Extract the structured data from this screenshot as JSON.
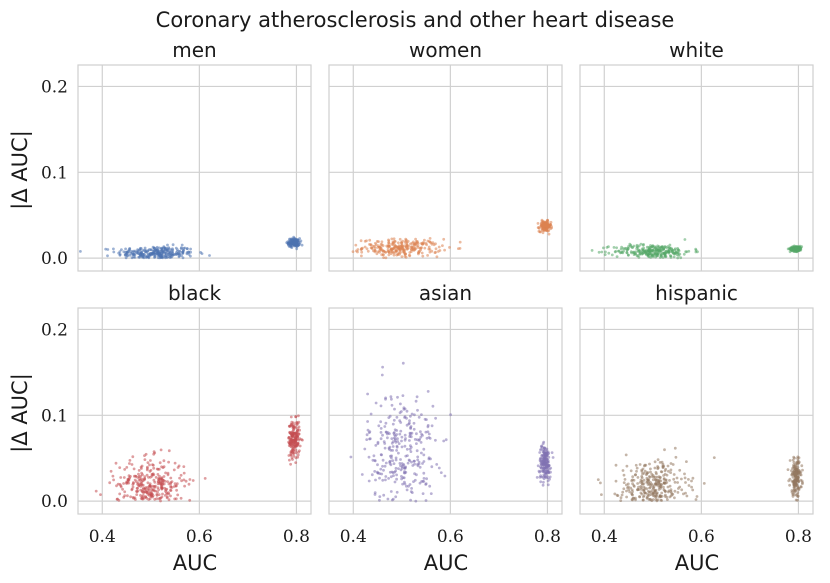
{
  "chart_data": {
    "type": "scatter",
    "title": "Coronary atherosclerosis and other heart disease",
    "xlabel": "AUC",
    "ylabel": "|Δ AUC|",
    "xlim": [
      0.35,
      0.83
    ],
    "ylim": [
      -0.015,
      0.225
    ],
    "xticks": [
      0.4,
      0.6,
      0.8
    ],
    "xtick_labels": [
      "0.4",
      "0.6",
      "0.8"
    ],
    "yticks": [
      0.0,
      0.1,
      0.2
    ],
    "ytick_labels": [
      "0.0",
      "0.1",
      "0.2"
    ],
    "grid": true,
    "panels": [
      {
        "name": "men",
        "color": "#4c72b0",
        "clusters": [
          {
            "x_center": 0.51,
            "x_spread": 0.04,
            "y_center": 0.006,
            "y_spread": 0.004,
            "n": 260
          },
          {
            "x_center": 0.795,
            "x_spread": 0.006,
            "y_center": 0.018,
            "y_spread": 0.0025,
            "n": 150
          }
        ]
      },
      {
        "name": "women",
        "color": "#dd8452",
        "clusters": [
          {
            "x_center": 0.5,
            "x_spread": 0.04,
            "y_center": 0.012,
            "y_spread": 0.005,
            "n": 260
          },
          {
            "x_center": 0.795,
            "x_spread": 0.006,
            "y_center": 0.037,
            "y_spread": 0.003,
            "n": 150
          }
        ]
      },
      {
        "name": "white",
        "color": "#55a868",
        "clusters": [
          {
            "x_center": 0.5,
            "x_spread": 0.04,
            "y_center": 0.008,
            "y_spread": 0.004,
            "n": 260
          },
          {
            "x_center": 0.795,
            "x_spread": 0.006,
            "y_center": 0.011,
            "y_spread": 0.0015,
            "n": 150
          }
        ]
      },
      {
        "name": "black",
        "color": "#c44e52",
        "clusters": [
          {
            "x_center": 0.5,
            "x_spread": 0.035,
            "y_center": 0.02,
            "y_spread": 0.015,
            "n": 300
          },
          {
            "x_center": 0.795,
            "x_spread": 0.006,
            "y_center": 0.072,
            "y_spread": 0.011,
            "n": 180
          }
        ]
      },
      {
        "name": "asian",
        "color": "#8172b3",
        "clusters": [
          {
            "x_center": 0.5,
            "x_spread": 0.035,
            "y_center": 0.06,
            "y_spread": 0.035,
            "n": 300
          },
          {
            "x_center": 0.795,
            "x_spread": 0.006,
            "y_center": 0.045,
            "y_spread": 0.01,
            "n": 180
          }
        ]
      },
      {
        "name": "hispanic",
        "color": "#937860",
        "clusters": [
          {
            "x_center": 0.5,
            "x_spread": 0.035,
            "y_center": 0.018,
            "y_spread": 0.015,
            "n": 300
          },
          {
            "x_center": 0.795,
            "x_spread": 0.006,
            "y_center": 0.028,
            "y_spread": 0.011,
            "n": 180
          }
        ]
      }
    ]
  }
}
